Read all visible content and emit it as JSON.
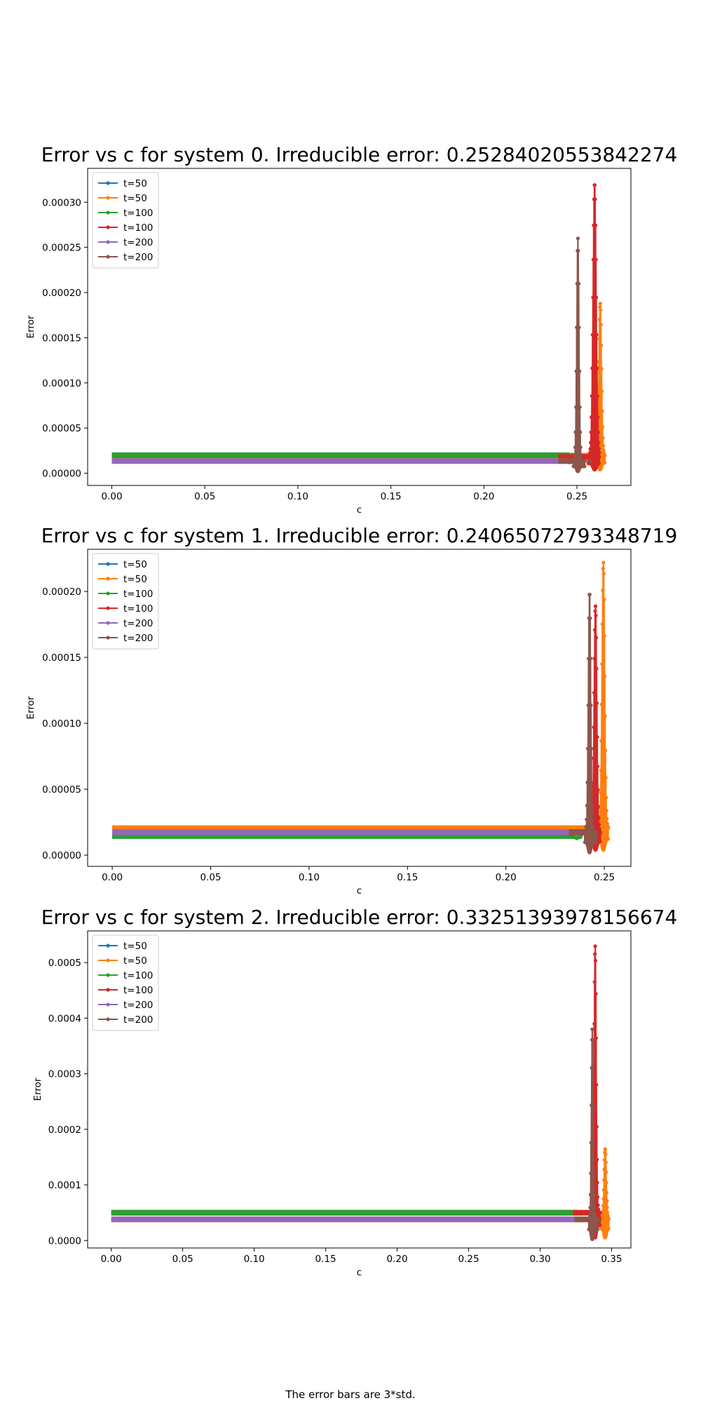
{
  "caption": "The error bars are 3*std.",
  "chart_data": [
    {
      "type": "line",
      "title": "Error vs c for system 0. Irreducible error: 0.25284020553842274",
      "xlabel": "c",
      "ylabel": "Error",
      "xlim": [
        -0.013,
        0.279
      ],
      "ylim": [
        -1.35e-05,
        0.0003375
      ],
      "xticks": [
        0.0,
        0.05,
        0.1,
        0.15,
        0.2,
        0.25
      ],
      "xtick_labels": [
        "0.00",
        "0.05",
        "0.10",
        "0.15",
        "0.20",
        "0.25"
      ],
      "yticks": [
        0.0,
        5e-05,
        0.0001,
        0.00015,
        0.0002,
        0.00025,
        0.0003
      ],
      "ytick_labels": [
        "0.00000",
        "0.00005",
        "0.00010",
        "0.00015",
        "0.00020",
        "0.00025",
        "0.00030"
      ],
      "legend": "top-left",
      "grid": false,
      "series": [
        {
          "name": "t=50",
          "color": "#1f77b4",
          "x_start": 0.0,
          "x_end": 0.25,
          "baseline": 1.95e-05,
          "spike_x": 0.2505,
          "spike_peak": 1.95e-05,
          "spike_width": 0.003,
          "spike_min": 1.2e-05
        },
        {
          "name": "t=50",
          "color": "#ff7f0e",
          "x_start": 0.0,
          "x_end": 0.265,
          "baseline": 1.95e-05,
          "spike_x": 0.2625,
          "spike_peak": 0.000188,
          "spike_width": 0.0028,
          "spike_min": 4e-06
        },
        {
          "name": "t=100",
          "color": "#2ca02c",
          "x_start": 0.0,
          "x_end": 0.25,
          "baseline": 2e-05,
          "spike_x": 0.248,
          "spike_peak": 2e-05,
          "spike_width": 0.002,
          "spike_min": 1.8e-05
        },
        {
          "name": "t=100",
          "color": "#d62728",
          "x_start": 0.24,
          "x_end": 0.262,
          "baseline": 1.8e-05,
          "spike_x": 0.2595,
          "spike_peak": 0.000321,
          "spike_width": 0.0035,
          "spike_min": 4e-06
        },
        {
          "name": "t=200",
          "color": "#9467bd",
          "x_start": 0.0,
          "x_end": 0.248,
          "baseline": 1.35e-05,
          "spike_x": 0.246,
          "spike_peak": 1.35e-05,
          "spike_width": 0.002,
          "spike_min": 1.2e-05
        },
        {
          "name": "t=200",
          "color": "#8c564b",
          "x_start": 0.24,
          "x_end": 0.257,
          "baseline": 1.35e-05,
          "spike_x": 0.2505,
          "spike_peak": 0.00026,
          "spike_width": 0.0025,
          "spike_min": 2e-06
        }
      ]
    },
    {
      "type": "line",
      "title": "Error vs c for system 1. Irreducible error: 0.24065072793348719",
      "xlabel": "c",
      "ylabel": "Error",
      "xlim": [
        -0.0125,
        0.2635
      ],
      "ylim": [
        -8.5e-06,
        0.000232
      ],
      "xticks": [
        0.0,
        0.05,
        0.1,
        0.15,
        0.2,
        0.25
      ],
      "xtick_labels": [
        "0.00",
        "0.05",
        "0.10",
        "0.15",
        "0.20",
        "0.25"
      ],
      "yticks": [
        0.0,
        5e-05,
        0.0001,
        0.00015,
        0.0002
      ],
      "ytick_labels": [
        "0.00000",
        "0.00005",
        "0.00010",
        "0.00015",
        "0.00020"
      ],
      "legend": "top-left",
      "grid": false,
      "series": [
        {
          "name": "t=50",
          "color": "#1f77b4",
          "x_start": 0.0,
          "x_end": 0.238,
          "baseline": 1.45e-05,
          "spike_x": 0.236,
          "spike_peak": 1.45e-05,
          "spike_width": 0.002,
          "spike_min": 1.3e-05
        },
        {
          "name": "t=50",
          "color": "#ff7f0e",
          "x_start": 0.0,
          "x_end": 0.252,
          "baseline": 2.05e-05,
          "spike_x": 0.2495,
          "spike_peak": 0.000222,
          "spike_width": 0.0028,
          "spike_min": 4e-06
        },
        {
          "name": "t=100",
          "color": "#2ca02c",
          "x_start": 0.0,
          "x_end": 0.238,
          "baseline": 1.45e-05,
          "spike_x": 0.236,
          "spike_peak": 1.45e-05,
          "spike_width": 0.002,
          "spike_min": 1.3e-05
        },
        {
          "name": "t=100",
          "color": "#d62728",
          "x_start": 0.232,
          "x_end": 0.248,
          "baseline": 1.7e-05,
          "spike_x": 0.2455,
          "spike_peak": 0.000189,
          "spike_width": 0.0028,
          "spike_min": 4e-06
        },
        {
          "name": "t=200",
          "color": "#9467bd",
          "x_start": 0.0,
          "x_end": 0.238,
          "baseline": 1.75e-05,
          "spike_x": 0.236,
          "spike_peak": 1.75e-05,
          "spike_width": 0.002,
          "spike_min": 1.6e-05
        },
        {
          "name": "t=200",
          "color": "#8c564b",
          "x_start": 0.232,
          "x_end": 0.246,
          "baseline": 1.75e-05,
          "spike_x": 0.2425,
          "spike_peak": 0.0002,
          "spike_width": 0.0025,
          "spike_min": 2e-06
        }
      ]
    },
    {
      "type": "line",
      "title": "Error vs c for system 2. Irreducible error: 0.33251393978156674",
      "xlabel": "c",
      "ylabel": "Error",
      "xlim": [
        -0.0165,
        0.3635
      ],
      "ylim": [
        -1.35e-05,
        0.000557
      ],
      "xticks": [
        0.0,
        0.05,
        0.1,
        0.15,
        0.2,
        0.25,
        0.3,
        0.35
      ],
      "xtick_labels": [
        "0.00",
        "0.05",
        "0.10",
        "0.15",
        "0.20",
        "0.25",
        "0.30",
        "0.35"
      ],
      "yticks": [
        0.0,
        0.0001,
        0.0002,
        0.0003,
        0.0004,
        0.0005
      ],
      "ytick_labels": [
        "0.0000",
        "0.0001",
        "0.0002",
        "0.0003",
        "0.0004",
        "0.0005"
      ],
      "legend": "top-left",
      "grid": false,
      "series": [
        {
          "name": "t=50",
          "color": "#1f77b4",
          "x_start": 0.0,
          "x_end": 0.33,
          "baseline": 5e-05,
          "spike_x": 0.328,
          "spike_peak": 5e-05,
          "spike_width": 0.002,
          "spike_min": 4.8e-05
        },
        {
          "name": "t=50",
          "color": "#ff7f0e",
          "x_start": 0.0,
          "x_end": 0.348,
          "baseline": 3.8e-05,
          "spike_x": 0.3455,
          "spike_peak": 0.000165,
          "spike_width": 0.003,
          "spike_min": 5e-06
        },
        {
          "name": "t=100",
          "color": "#2ca02c",
          "x_start": 0.0,
          "x_end": 0.33,
          "baseline": 5e-05,
          "spike_x": 0.328,
          "spike_peak": 5e-05,
          "spike_width": 0.002,
          "spike_min": 4.8e-05
        },
        {
          "name": "t=100",
          "color": "#d62728",
          "x_start": 0.323,
          "x_end": 0.342,
          "baseline": 5e-05,
          "spike_x": 0.3385,
          "spike_peak": 0.00053,
          "spike_width": 0.003,
          "spike_min": 5e-06
        },
        {
          "name": "t=200",
          "color": "#9467bd",
          "x_start": 0.0,
          "x_end": 0.33,
          "baseline": 3.8e-05,
          "spike_x": 0.328,
          "spike_peak": 3.8e-05,
          "spike_width": 0.002,
          "spike_min": 3.6e-05
        },
        {
          "name": "t=200",
          "color": "#8c564b",
          "x_start": 0.324,
          "x_end": 0.342,
          "baseline": 3.8e-05,
          "spike_x": 0.3365,
          "spike_peak": 0.00038,
          "spike_width": 0.0025,
          "spike_min": 2e-06
        }
      ]
    }
  ]
}
